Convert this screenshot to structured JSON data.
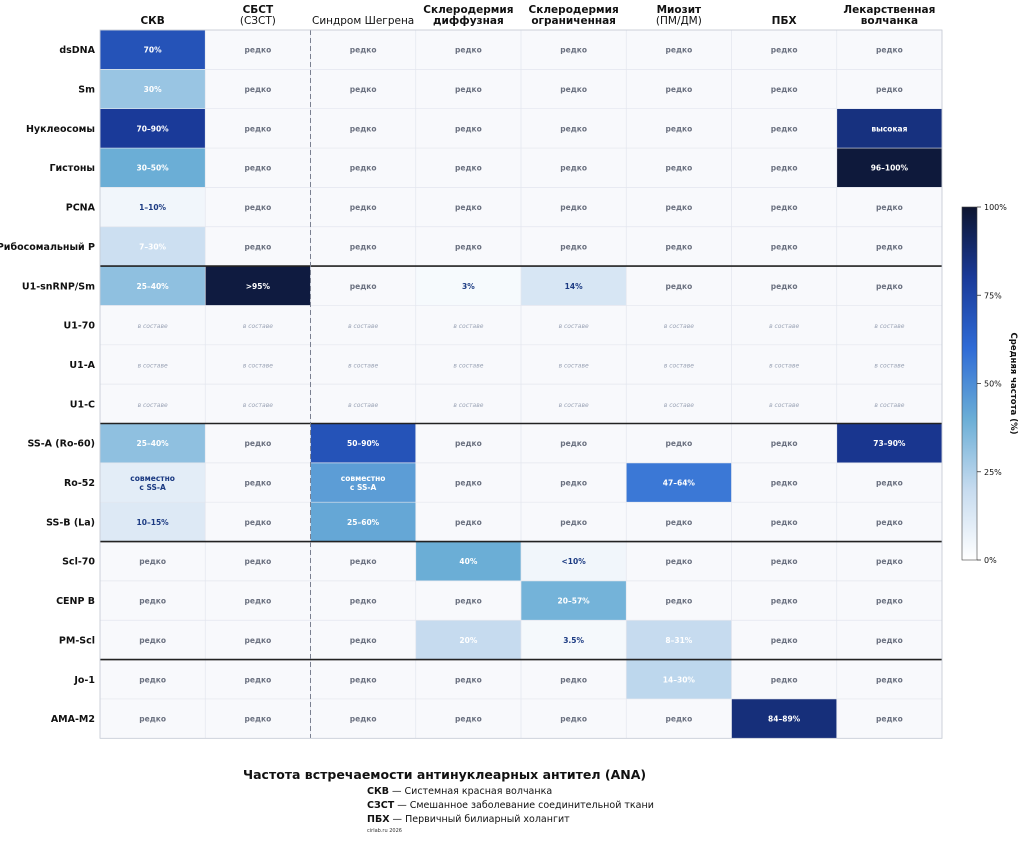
{
  "chart_data": {
    "type": "heatmap",
    "columns": [
      {
        "lines": [
          "СКВ"
        ],
        "bold": [
          true
        ]
      },
      {
        "lines": [
          "СБСТ",
          "(СЗСТ)"
        ],
        "bold": [
          true,
          false
        ]
      },
      {
        "lines": [
          "Синдром Шегрена"
        ],
        "bold": [
          false
        ]
      },
      {
        "lines": [
          "Склеродермия",
          "диффузная"
        ],
        "bold": [
          true,
          true
        ]
      },
      {
        "lines": [
          "Склеродермия",
          "ограниченная"
        ],
        "bold": [
          true,
          true
        ]
      },
      {
        "lines": [
          "Миозит",
          "(ПМ/ДМ)"
        ],
        "bold": [
          true,
          false
        ]
      },
      {
        "lines": [
          "ПБХ"
        ],
        "bold": [
          true
        ]
      },
      {
        "lines": [
          "Лекарственная",
          "волчанка"
        ],
        "bold": [
          true,
          true
        ]
      }
    ],
    "rows": [
      "dsDNA",
      "Sm",
      "Нуклеосомы",
      "Гистоны",
      "PCNA",
      "Рибосомальный P",
      "U1-snRNP/Sm",
      "U1-70",
      "U1-A",
      "U1-C",
      "SS-A (Ro-60)",
      "Ro-52",
      "SS-B (La)",
      "Scl-70",
      "CENP B",
      "PM-Scl",
      "Jo-1",
      "AMA-M2"
    ],
    "group_separators_after_rows": [
      5,
      9,
      12,
      15
    ],
    "dashed_separator_after_column": 1,
    "cells": [
      [
        {
          "label": "70%",
          "value": 70
        },
        {
          "label": "редко"
        },
        {
          "label": "редко"
        },
        {
          "label": "редко"
        },
        {
          "label": "редко"
        },
        {
          "label": "редко"
        },
        {
          "label": "редко"
        },
        {
          "label": "редко"
        }
      ],
      [
        {
          "label": "30%",
          "value": 30
        },
        {
          "label": "редко"
        },
        {
          "label": "редко"
        },
        {
          "label": "редко"
        },
        {
          "label": "редко"
        },
        {
          "label": "редко"
        },
        {
          "label": "редко"
        },
        {
          "label": "редко"
        }
      ],
      [
        {
          "label": "70–90%",
          "value": 80
        },
        {
          "label": "редко"
        },
        {
          "label": "редко"
        },
        {
          "label": "редко"
        },
        {
          "label": "редко"
        },
        {
          "label": "редко"
        },
        {
          "label": "редко"
        },
        {
          "label": "высокая",
          "value": 85
        }
      ],
      [
        {
          "label": "30–50%",
          "value": 40
        },
        {
          "label": "редко"
        },
        {
          "label": "редко"
        },
        {
          "label": "редко"
        },
        {
          "label": "редко"
        },
        {
          "label": "редко"
        },
        {
          "label": "редко"
        },
        {
          "label": "96–100%",
          "value": 98
        }
      ],
      [
        {
          "label": "1–10%",
          "value": 5
        },
        {
          "label": "редко"
        },
        {
          "label": "редко"
        },
        {
          "label": "редко"
        },
        {
          "label": "редко"
        },
        {
          "label": "редко"
        },
        {
          "label": "редко"
        },
        {
          "label": "редко"
        }
      ],
      [
        {
          "label": "7–30%",
          "value": 18
        },
        {
          "label": "редко"
        },
        {
          "label": "редко"
        },
        {
          "label": "редко"
        },
        {
          "label": "редко"
        },
        {
          "label": "редко"
        },
        {
          "label": "редко"
        },
        {
          "label": "редко"
        }
      ],
      [
        {
          "label": "25–40%",
          "value": 32
        },
        {
          "label": ">95%",
          "value": 97
        },
        {
          "label": "редко"
        },
        {
          "label": "3%",
          "value": 3
        },
        {
          "label": "14%",
          "value": 14
        },
        {
          "label": "редко"
        },
        {
          "label": "редко"
        },
        {
          "label": "редко"
        }
      ],
      [
        {
          "label": "в составе",
          "sub": true
        },
        {
          "label": "в составе",
          "sub": true
        },
        {
          "label": "в составе",
          "sub": true
        },
        {
          "label": "в составе",
          "sub": true
        },
        {
          "label": "в составе",
          "sub": true
        },
        {
          "label": "в составе",
          "sub": true
        },
        {
          "label": "в составе",
          "sub": true
        },
        {
          "label": "в составе",
          "sub": true
        }
      ],
      [
        {
          "label": "в составе",
          "sub": true
        },
        {
          "label": "в составе",
          "sub": true
        },
        {
          "label": "в составе",
          "sub": true
        },
        {
          "label": "в составе",
          "sub": true
        },
        {
          "label": "в составе",
          "sub": true
        },
        {
          "label": "в составе",
          "sub": true
        },
        {
          "label": "в составе",
          "sub": true
        },
        {
          "label": "в составе",
          "sub": true
        }
      ],
      [
        {
          "label": "в составе",
          "sub": true
        },
        {
          "label": "в составе",
          "sub": true
        },
        {
          "label": "в составе",
          "sub": true
        },
        {
          "label": "в составе",
          "sub": true
        },
        {
          "label": "в составе",
          "sub": true
        },
        {
          "label": "в составе",
          "sub": true
        },
        {
          "label": "в составе",
          "sub": true
        },
        {
          "label": "в составе",
          "sub": true
        }
      ],
      [
        {
          "label": "25–40%",
          "value": 32
        },
        {
          "label": "редко"
        },
        {
          "label": "50–90%",
          "value": 70
        },
        {
          "label": "редко"
        },
        {
          "label": "редко"
        },
        {
          "label": "редко"
        },
        {
          "label": "редко"
        },
        {
          "label": "73–90%",
          "value": 82
        }
      ],
      [
        {
          "label": "совместно\nс SS-A",
          "value": 10
        },
        {
          "label": "редко"
        },
        {
          "label": "совместно\nс SS-A",
          "value": 45
        },
        {
          "label": "редко"
        },
        {
          "label": "редко"
        },
        {
          "label": "47–64%",
          "value": 56
        },
        {
          "label": "редко"
        },
        {
          "label": "редко"
        }
      ],
      [
        {
          "label": "10–15%",
          "value": 12
        },
        {
          "label": "редко"
        },
        {
          "label": "25–60%",
          "value": 42
        },
        {
          "label": "редко"
        },
        {
          "label": "редко"
        },
        {
          "label": "редко"
        },
        {
          "label": "редко"
        },
        {
          "label": "редко"
        }
      ],
      [
        {
          "label": "редко"
        },
        {
          "label": "редко"
        },
        {
          "label": "редко"
        },
        {
          "label": "40%",
          "value": 40
        },
        {
          "label": "<10%",
          "value": 5
        },
        {
          "label": "редко"
        },
        {
          "label": "редко"
        },
        {
          "label": "редко"
        }
      ],
      [
        {
          "label": "редко"
        },
        {
          "label": "редко"
        },
        {
          "label": "редко"
        },
        {
          "label": "редко"
        },
        {
          "label": "20–57%",
          "value": 38
        },
        {
          "label": "редко"
        },
        {
          "label": "редко"
        },
        {
          "label": "редко"
        }
      ],
      [
        {
          "label": "редко"
        },
        {
          "label": "редко"
        },
        {
          "label": "редко"
        },
        {
          "label": "20%",
          "value": 20
        },
        {
          "label": "3.5%",
          "value": 3.5
        },
        {
          "label": "8–31%",
          "value": 20
        },
        {
          "label": "редко"
        },
        {
          "label": "редко"
        }
      ],
      [
        {
          "label": "редко"
        },
        {
          "label": "редко"
        },
        {
          "label": "редко"
        },
        {
          "label": "редко"
        },
        {
          "label": "редко"
        },
        {
          "label": "14–30%",
          "value": 22
        },
        {
          "label": "редко"
        },
        {
          "label": "редко"
        }
      ],
      [
        {
          "label": "редко"
        },
        {
          "label": "редко"
        },
        {
          "label": "редко"
        },
        {
          "label": "редко"
        },
        {
          "label": "редко"
        },
        {
          "label": "редко"
        },
        {
          "label": "84–89%",
          "value": 86
        },
        {
          "label": "редко"
        }
      ]
    ],
    "colorbar": {
      "label": "Средняя частота (%)",
      "ticks": [
        "0%",
        "25%",
        "50%",
        "75%",
        "100%"
      ],
      "range": [
        0,
        100
      ],
      "colors": [
        "#ffffff",
        "#c6dbef",
        "#6baed6",
        "#2f6bd6",
        "#1a3a99",
        "#0d1530"
      ]
    },
    "empty_cell_color": "#f8f9fc",
    "grid": true
  },
  "footer": {
    "title": "Частота встречаемости антинуклеарных антител (ANA)",
    "legend": [
      {
        "abbr": "СКВ",
        "text": "Системная красная волчанка"
      },
      {
        "abbr": "СЗСТ",
        "text": "Смешанное заболевание соединительной ткани"
      },
      {
        "abbr": "ПБХ",
        "text": "Первичный билиарный холангит"
      }
    ],
    "credit": "cirlab.ru 2026"
  }
}
